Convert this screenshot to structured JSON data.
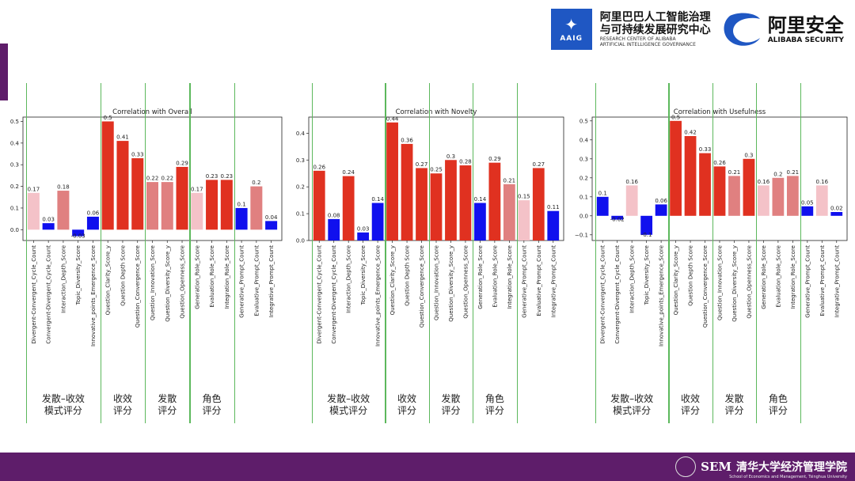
{
  "header": {
    "aaig_badge": "AAIG",
    "aaig_name_line1": "阿里巴巴人工智能治理",
    "aaig_name_line2": "与可持续发展研究中心",
    "aaig_en_line1": "RESEARCH CENTER OF ALIBABA",
    "aaig_en_line2": "ARTIFICIAL INTELLIGENCE GOVERNANCE",
    "security_name": "阿里安全",
    "security_en": "ALIBABA SECURITY"
  },
  "footer": {
    "sem": "SEM",
    "school": "清华大学经济管理学院",
    "school_en": "School of Economics and Management, Tsinghua University"
  },
  "colors": {
    "red": "#e03120",
    "blue": "#1010ee",
    "salmon": "#e08080",
    "pink": "#f4c2c8",
    "divider": "#5cb85c",
    "brand_purple": "#5e1d6a"
  },
  "groups": [
    {
      "line1": "发散–收效",
      "line2": "模式评分"
    },
    {
      "line1": "收效",
      "line2": "评分"
    },
    {
      "line1": "发散",
      "line2": "评分"
    },
    {
      "line1": "角色",
      "line2": "评分"
    }
  ],
  "chart_data": [
    {
      "type": "bar",
      "title": "Correlation with Overall",
      "categories": [
        "Divergent-Convergent_Cycle_Count",
        "Convergent-Divergent_Cycle_Count",
        "Interaction_Depth_Score",
        "Topic_Diversity_Score",
        "Innovative_points_Emergence_Score",
        "Question_Clarity_Score_y",
        "Question Depth Score",
        "Question_Convergence_Score",
        "Question_Innovation_Score",
        "Question_Diversity_Score_y",
        "Question_Openness_Score",
        "Generation_Role_Score",
        "Evaluation_Role_Score",
        "Integration_Role_Score",
        "Generative_Prompt_Count",
        "Evaluative_Prompt_Count",
        "Integrative_Prompt_Count"
      ],
      "values": [
        0.17,
        0.03,
        0.18,
        -0.03,
        0.06,
        0.5,
        0.41,
        0.33,
        0.22,
        0.22,
        0.29,
        0.17,
        0.23,
        0.23,
        0.1,
        0.2,
        0.04
      ],
      "labels": [
        "0.17",
        "0.03",
        "0.18",
        "-0.03",
        "0.06",
        "0.5",
        "0.41",
        "0.33",
        "0.22",
        "0.22",
        "0.29",
        "0.17",
        "0.23",
        "0.23",
        "0.1",
        "0.2",
        "0.04"
      ],
      "colors": [
        "pink",
        "blue",
        "salmon",
        "blue",
        "blue",
        "red",
        "red",
        "red",
        "salmon",
        "salmon",
        "red",
        "pink",
        "red",
        "red",
        "blue",
        "salmon",
        "blue"
      ],
      "ylim": [
        -0.05,
        0.52
      ],
      "yticks": [
        0.0,
        0.1,
        0.2,
        0.3,
        0.4,
        0.5
      ],
      "ytick_labels": [
        "0.0",
        "0.1",
        "0.2",
        "0.3",
        "0.4",
        "0.5"
      ]
    },
    {
      "type": "bar",
      "title": "Correlation with Novelty",
      "categories": [
        "Divergent-Convergent_Cycle_Count",
        "Convergent-Divergent_Cycle_Count",
        "Interaction_Depth_Score",
        "Topic_Diversity_Score",
        "Innovative_points_Emergence_Score",
        "Question_Clarity_Score_y",
        "Question Depth Score",
        "Question_Convergence_Score",
        "Question_Innovation_Score",
        "Question_Diversity_Score_y",
        "Question_Openness_Score",
        "Generation_Role_Score",
        "Evaluation_Role_Score",
        "Integration_Role_Score",
        "Generative_Prompt_Count",
        "Evaluative_Prompt_Count",
        "Integrative_Prompt_Count"
      ],
      "values": [
        0.26,
        0.08,
        0.24,
        0.03,
        0.14,
        0.44,
        0.36,
        0.27,
        0.25,
        0.3,
        0.28,
        0.14,
        0.29,
        0.21,
        0.15,
        0.27,
        0.11
      ],
      "labels": [
        "0.26",
        "0.08",
        "0.24",
        "0.03",
        "0.14",
        "0.44",
        "0.36",
        "0.27",
        "0.25",
        "0.3",
        "0.28",
        "0.14",
        "0.29",
        "0.21",
        "0.15",
        "0.27",
        "0.11"
      ],
      "colors": [
        "red",
        "blue",
        "red",
        "blue",
        "blue",
        "red",
        "red",
        "red",
        "red",
        "red",
        "red",
        "blue",
        "red",
        "salmon",
        "pink",
        "red",
        "blue"
      ],
      "ylim": [
        0.0,
        0.46
      ],
      "yticks": [
        0.0,
        0.1,
        0.2,
        0.3,
        0.4
      ],
      "ytick_labels": [
        "0.0",
        "0.1",
        "0.2",
        "0.3",
        "0.4"
      ]
    },
    {
      "type": "bar",
      "title": "Correlation with Usefulness",
      "categories": [
        "Divergent-Convergent_Cycle_Count",
        "Convergent-Divergent_Cycle_Count",
        "Interaction_Depth_Score",
        "Topic_Diversity_Score",
        "Innovative_points_Emergence_Score",
        "Question_Clarity_Score_y",
        "Question Depth Score",
        "Question_Convergence_Score",
        "Question_Innovation_Score",
        "Question_Diversity_Score_y",
        "Question_Openness_Score",
        "Generation_Role_Score",
        "Evaluation_Role_Score",
        "Integration_Role_Score",
        "Generative_Prompt_Count",
        "Evaluative_Prompt_Count",
        "Integrative_Prompt_Count"
      ],
      "values": [
        0.1,
        -0.02,
        0.16,
        -0.1,
        0.06,
        0.5,
        0.42,
        0.33,
        0.26,
        0.21,
        0.3,
        0.16,
        0.2,
        0.21,
        0.05,
        0.16,
        0.02
      ],
      "labels": [
        "0.1",
        "-0.02",
        "0.16",
        "-0.1",
        "0.06",
        "0.5",
        "0.42",
        "0.33",
        "0.26",
        "0.21",
        "0.3",
        "0.16",
        "0.2",
        "0.21",
        "0.05",
        "0.16",
        "0.02"
      ],
      "colors": [
        "blue",
        "blue",
        "pink",
        "blue",
        "blue",
        "red",
        "red",
        "red",
        "red",
        "salmon",
        "red",
        "pink",
        "salmon",
        "salmon",
        "blue",
        "pink",
        "blue"
      ],
      "ylim": [
        -0.13,
        0.52
      ],
      "yticks": [
        -0.1,
        0.0,
        0.1,
        0.2,
        0.3,
        0.4,
        0.5
      ],
      "ytick_labels": [
        "−0.1",
        "0.0",
        "0.1",
        "0.2",
        "0.3",
        "0.4",
        "0.5"
      ]
    }
  ]
}
